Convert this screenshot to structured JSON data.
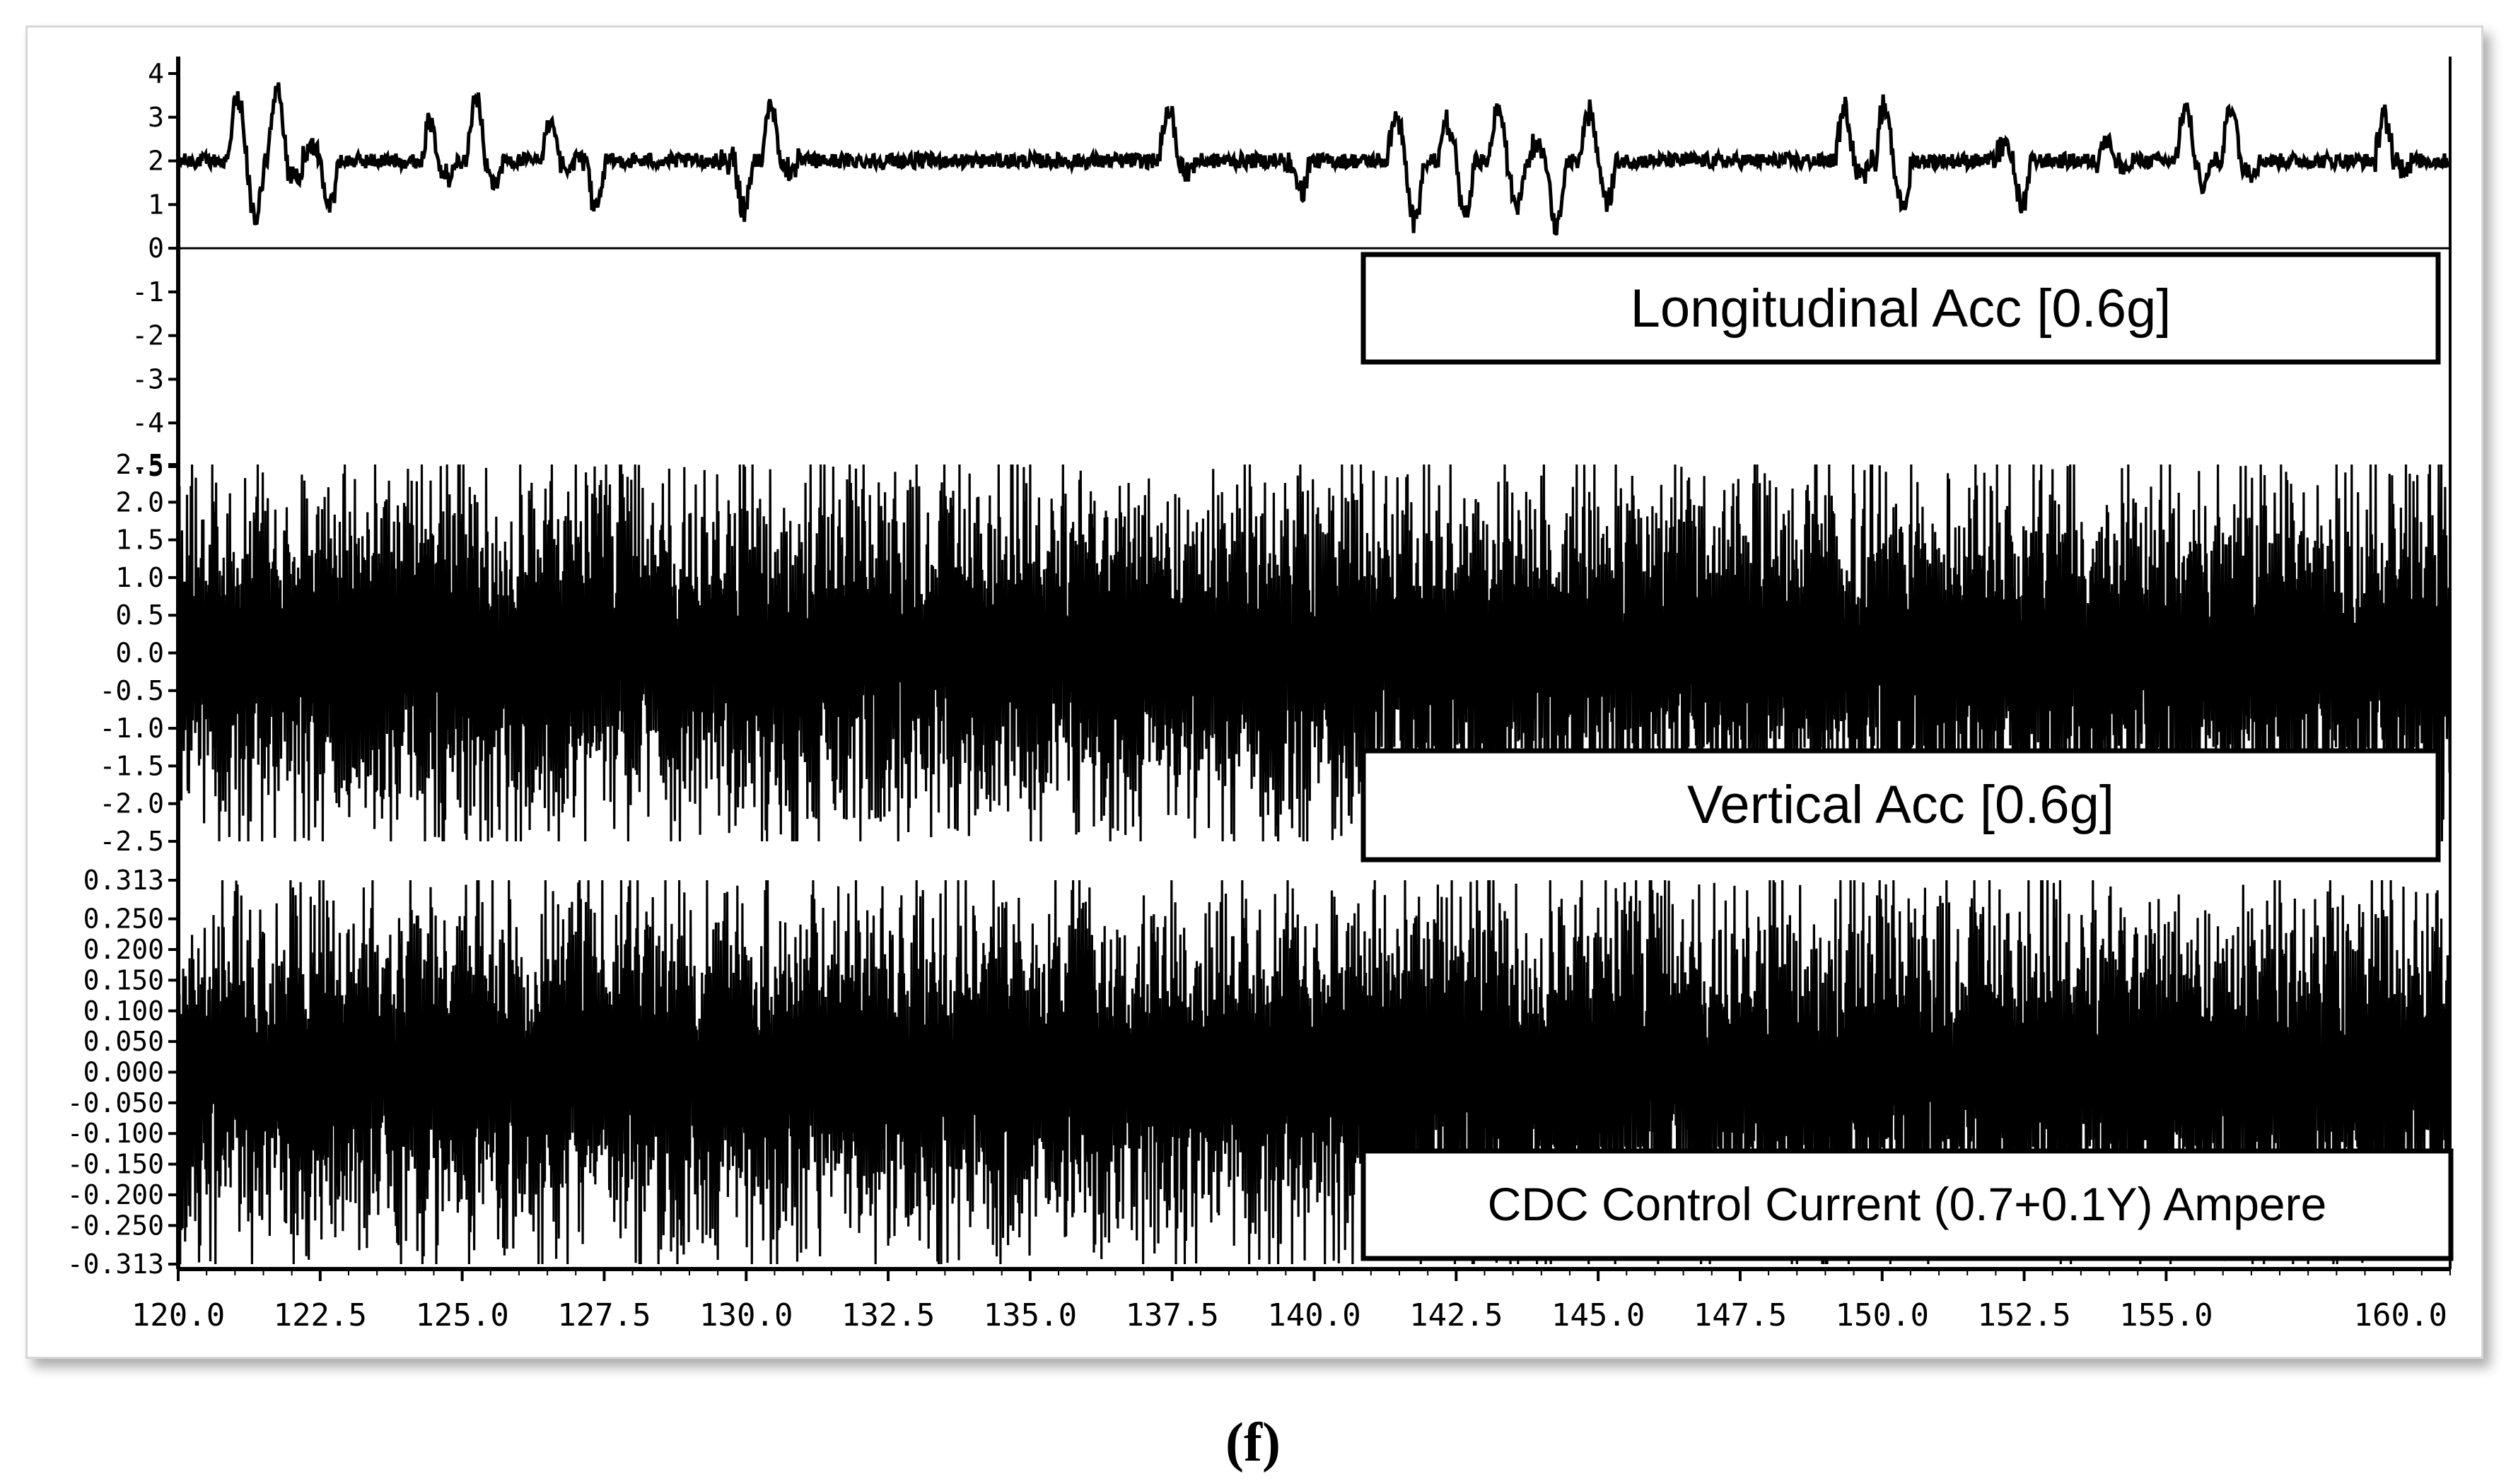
{
  "caption": "(f)",
  "colors": {
    "trace": "#000000",
    "background": "#ffffff",
    "frame": "#d6d6d6"
  },
  "chart_data": {
    "type": "line",
    "x_axis": {
      "range": [
        120.0,
        160.0
      ],
      "ticks": [
        120.0,
        122.5,
        125.0,
        127.5,
        130.0,
        132.5,
        135.0,
        137.5,
        140.0,
        142.5,
        145.0,
        147.5,
        150.0,
        152.5,
        155.0
      ],
      "tick_labels": [
        "120.0",
        "122.5",
        "125.0",
        "127.5",
        "130.0",
        "132.5",
        "135.0",
        "137.5",
        "140.0",
        "142.5",
        "145.0",
        "147.5",
        "150.0",
        "152.5",
        "155.0"
      ],
      "end_label": "160.0"
    },
    "panels": [
      {
        "name": "Longitudinal Acc [0.6g]",
        "ylim": [
          -5,
          4
        ],
        "ticks": [
          4,
          3,
          2,
          1,
          0,
          -1,
          -2,
          -3,
          -4,
          -5
        ],
        "tick_labels": [
          "4",
          "3",
          "2",
          "1",
          "0",
          "-1",
          "-2",
          "-3",
          "-4",
          "-5"
        ],
        "baseline": 2.0,
        "events": [
          {
            "x": 121.2,
            "min": 0.7,
            "max": 3.4
          },
          {
            "x": 121.9,
            "min": 1.6,
            "max": 3.6
          },
          {
            "x": 122.5,
            "min": 1.0,
            "max": 2.4
          },
          {
            "x": 124.6,
            "min": 1.6,
            "max": 2.9
          },
          {
            "x": 125.4,
            "min": 1.5,
            "max": 3.4
          },
          {
            "x": 126.7,
            "min": 1.7,
            "max": 2.8
          },
          {
            "x": 127.2,
            "min": 0.9,
            "max": 2.1
          },
          {
            "x": 129.8,
            "min": 0.9,
            "max": 2.0
          },
          {
            "x": 130.6,
            "min": 1.8,
            "max": 3.3
          },
          {
            "x": 137.6,
            "min": 1.8,
            "max": 3.2
          },
          {
            "x": 139.6,
            "min": 1.3,
            "max": 2.0
          },
          {
            "x": 141.6,
            "min": 0.6,
            "max": 3.0
          },
          {
            "x": 142.5,
            "min": 0.7,
            "max": 2.9
          },
          {
            "x": 143.4,
            "min": 1.0,
            "max": 3.2
          },
          {
            "x": 144.1,
            "min": 0.5,
            "max": 2.4
          },
          {
            "x": 145.0,
            "min": 1.1,
            "max": 3.1
          },
          {
            "x": 149.5,
            "min": 1.7,
            "max": 3.2
          },
          {
            "x": 150.2,
            "min": 0.9,
            "max": 3.3
          },
          {
            "x": 152.3,
            "min": 1.0,
            "max": 2.3
          },
          {
            "x": 154.1,
            "min": 1.8,
            "max": 2.5
          },
          {
            "x": 155.5,
            "min": 1.5,
            "max": 3.2
          },
          {
            "x": 156.3,
            "min": 1.8,
            "max": 3.3
          },
          {
            "x": 159.0,
            "min": 1.9,
            "max": 3.0
          }
        ]
      },
      {
        "name": "Vertical Acc [0.6g]",
        "ylim": [
          -2.5,
          2.5
        ],
        "ticks": [
          2.5,
          2.0,
          1.5,
          1.0,
          0.5,
          0.0,
          -0.5,
          -1.0,
          -1.5,
          -2.0,
          -2.5
        ],
        "tick_labels": [
          "2.5",
          "2.0",
          "1.5",
          "1.0",
          "0.5",
          "0.0",
          "-0.5",
          "-1.0",
          "-1.5",
          "-2.0",
          "-2.5"
        ],
        "amplitude_range": [
          -2.5,
          2.5
        ],
        "approx_oscillation_hz": 3.5
      },
      {
        "name": "CDC Control Current (0.7+0.1Y) Ampere",
        "ylim": [
          -0.313,
          0.313
        ],
        "ticks": [
          0.313,
          0.25,
          0.2,
          0.15,
          0.1,
          0.05,
          0.0,
          -0.05,
          -0.1,
          -0.15,
          -0.2,
          -0.25,
          -0.313
        ],
        "tick_labels": [
          "0.313",
          "0.250",
          "0.200",
          "0.150",
          "0.100",
          "0.050",
          "0.000",
          "-0.050",
          "-0.100",
          "-0.150",
          "-0.200",
          "-0.250",
          "-0.313"
        ],
        "amplitude_range": [
          -0.313,
          0.313
        ],
        "approx_oscillation_hz": 3.5
      }
    ],
    "grid": false,
    "legend": "none"
  }
}
